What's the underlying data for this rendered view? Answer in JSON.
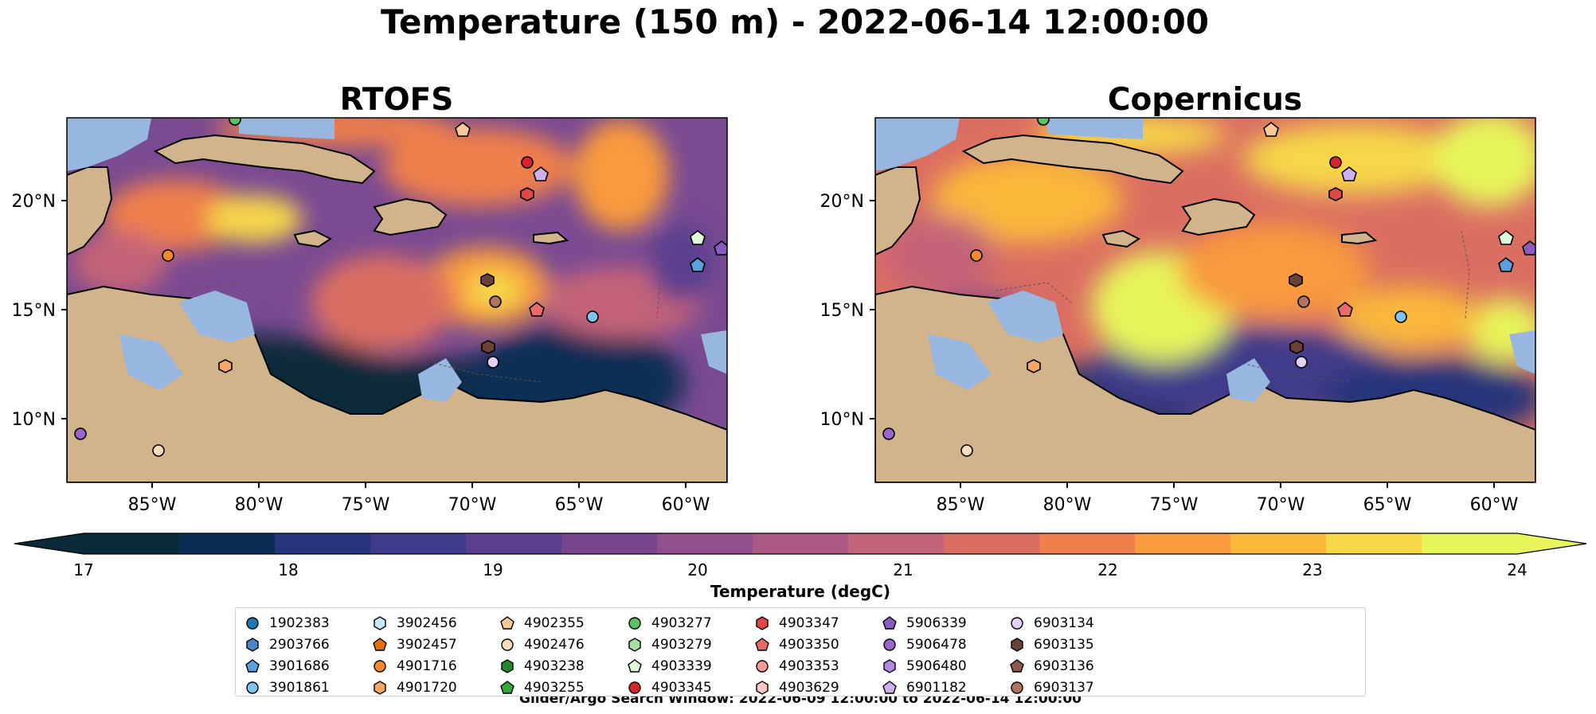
{
  "suptitle": "Temperature (150 m) - 2022-06-14 12:00:00",
  "panels": [
    {
      "title": "RTOFS",
      "variant": "rtofs"
    },
    {
      "title": "Copernicus",
      "variant": "copernicus"
    }
  ],
  "axes": {
    "lon_ticks": [
      "85°W",
      "80°W",
      "75°W",
      "70°W",
      "65°W",
      "60°W"
    ],
    "lat_ticks": [
      "20°N",
      "15°N",
      "10°N"
    ]
  },
  "colorbar": {
    "label": "Temperature (degC)",
    "ticks": [
      "17",
      "18",
      "19",
      "20",
      "21",
      "22",
      "23",
      "24"
    ],
    "colors": [
      "#0a2a3a",
      "#0b2d55",
      "#26357a",
      "#3f3a8a",
      "#5a3f8f",
      "#77468f",
      "#91508c",
      "#ab5a84",
      "#c46478",
      "#db6e62",
      "#ef7f4c",
      "#f89a3e",
      "#fab83a",
      "#f6d748",
      "#e7f55a"
    ],
    "extend": "both"
  },
  "legend": {
    "items": [
      {
        "id": "1902383",
        "marker": "circle",
        "color": "#1f77b4"
      },
      {
        "id": "2903766",
        "marker": "hexagon",
        "color": "#4a86c7"
      },
      {
        "id": "3901686",
        "marker": "pentagon",
        "color": "#5aa0dd"
      },
      {
        "id": "3901861",
        "marker": "circle",
        "color": "#7ec4f0"
      },
      {
        "id": "3902456",
        "marker": "hexagon",
        "color": "#c8e7f8"
      },
      {
        "id": "3902457",
        "marker": "pentagon",
        "color": "#e8700c"
      },
      {
        "id": "4901716",
        "marker": "circle",
        "color": "#f08a2a"
      },
      {
        "id": "4901720",
        "marker": "hexagon",
        "color": "#f4a66a"
      },
      {
        "id": "4902355",
        "marker": "pentagon",
        "color": "#f8c89a"
      },
      {
        "id": "4902476",
        "marker": "circle",
        "color": "#fbdcbf"
      },
      {
        "id": "4903238",
        "marker": "hexagon",
        "color": "#238b2a"
      },
      {
        "id": "4903255",
        "marker": "pentagon",
        "color": "#34a83c"
      },
      {
        "id": "4903277",
        "marker": "circle",
        "color": "#5cc262"
      },
      {
        "id": "4903279",
        "marker": "hexagon",
        "color": "#a6e0a0"
      },
      {
        "id": "4903339",
        "marker": "pentagon",
        "color": "#dff7d8"
      },
      {
        "id": "4903345",
        "marker": "circle",
        "color": "#d62728"
      },
      {
        "id": "4903347",
        "marker": "hexagon",
        "color": "#e04848"
      },
      {
        "id": "4903350",
        "marker": "pentagon",
        "color": "#ea6a6a"
      },
      {
        "id": "4903353",
        "marker": "circle",
        "color": "#f29a98"
      },
      {
        "id": "4903629",
        "marker": "hexagon",
        "color": "#f8c6c4"
      },
      {
        "id": "5906339",
        "marker": "pentagon",
        "color": "#8a5cc0"
      },
      {
        "id": "5906478",
        "marker": "circle",
        "color": "#9a66cc"
      },
      {
        "id": "5906480",
        "marker": "hexagon",
        "color": "#b28ade"
      },
      {
        "id": "6901182",
        "marker": "pentagon",
        "color": "#cdb0ee"
      },
      {
        "id": "6903134",
        "marker": "circle",
        "color": "#e3d0f7"
      },
      {
        "id": "6903135",
        "marker": "hexagon",
        "color": "#6b4237"
      },
      {
        "id": "6903136",
        "marker": "pentagon",
        "color": "#8c5a4a"
      },
      {
        "id": "6903137",
        "marker": "circle",
        "color": "#b07562"
      }
    ]
  },
  "footer": "Glider/Argo Search Window: 2022-06-09 12:00:00 to 2022-06-14 12:00:00",
  "chart_data": {
    "type": "heatmap",
    "variable": "Temperature (degC)",
    "depth": "150 m",
    "time": "2022-06-14 12:00:00",
    "color_range": [
      17,
      24
    ],
    "lon_range": [
      -89,
      -58
    ],
    "lat_range": [
      7,
      24
    ],
    "panels": [
      "RTOFS",
      "Copernicus"
    ],
    "floats": [
      {
        "id": "4903277",
        "lon": -81.0,
        "lat": 23.9
      },
      {
        "id": "4902355",
        "lon": -70.0,
        "lat": 23.3
      },
      {
        "id": "4903345",
        "lon": -67.4,
        "lat": 21.7
      },
      {
        "id": "6901182",
        "lon": -66.8,
        "lat": 21.2
      },
      {
        "id": "4903347",
        "lon": -67.4,
        "lat": 20.4
      },
      {
        "id": "4901716",
        "lon": -84.2,
        "lat": 17.5
      },
      {
        "id": "4903339",
        "lon": -59.5,
        "lat": 18.4
      },
      {
        "id": "5906339",
        "lon": -58.2,
        "lat": 17.8
      },
      {
        "id": "3901686",
        "lon": -59.6,
        "lat": 17.0
      },
      {
        "id": "6903135",
        "lon": -69.2,
        "lat": 16.3
      },
      {
        "id": "6903137",
        "lon": -68.9,
        "lat": 15.4
      },
      {
        "id": "4903350",
        "lon": -67.0,
        "lat": 15.1
      },
      {
        "id": "3901861",
        "lon": -64.5,
        "lat": 14.7
      },
      {
        "id": "6903135",
        "lon": -69.2,
        "lat": 13.4
      },
      {
        "id": "6903134",
        "lon": -69.0,
        "lat": 12.7
      },
      {
        "id": "4901720",
        "lon": -81.6,
        "lat": 12.4
      },
      {
        "id": "5906478",
        "lon": -88.5,
        "lat": 9.3
      },
      {
        "id": "4902476",
        "lon": -84.7,
        "lat": 8.6
      }
    ]
  }
}
